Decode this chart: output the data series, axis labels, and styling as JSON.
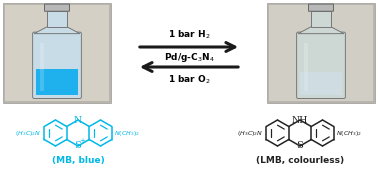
{
  "bg_color": "#ffffff",
  "arrow_color": "#1a1a1a",
  "arrow_top_label": "1 bar H$_2$",
  "arrow_middle_label": "Pd/g-C$_3$N$_4$",
  "arrow_bottom_label": "1 bar O$_2$",
  "mb_label": "(MB, blue)",
  "lmb_label": "(LMB, colourless)",
  "mb_color": "#00b8e8",
  "lmb_color": "#222222",
  "liquid_mb": "#00aaee",
  "liquid_lmb": "#d0dde5",
  "photo_left_bg": "#c8c8c0",
  "photo_right_bg": "#c8c8c0",
  "bottle_glass_left": "#c5dde8",
  "bottle_glass_right": "#d8ddd8",
  "font_size_arrow": 6.5,
  "font_size_label": 6.5,
  "font_size_struct": 5.0,
  "font_size_sub": 4.5
}
